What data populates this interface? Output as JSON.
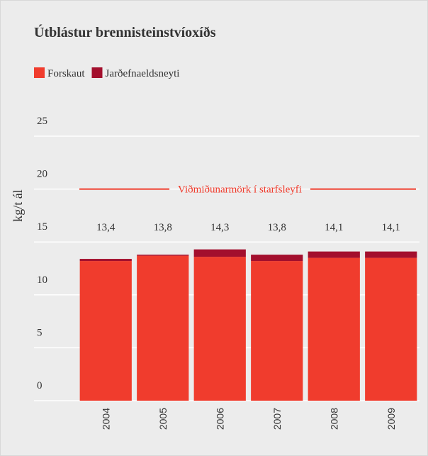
{
  "chart_data": {
    "type": "stacked_bar",
    "title": "Útblástur brennisteinstvíoxíðs",
    "ylabel": "kg/t ál",
    "categories": [
      "2004",
      "2005",
      "2006",
      "2007",
      "2008",
      "2009"
    ],
    "series": [
      {
        "name": "Forskaut",
        "color": "#f03c2d",
        "values": [
          13.2,
          13.7,
          13.6,
          13.2,
          13.5,
          13.5
        ]
      },
      {
        "name": "Jarðefnaeldsneyti",
        "color": "#a30f2d",
        "values": [
          0.2,
          0.1,
          0.7,
          0.6,
          0.6,
          0.6
        ]
      }
    ],
    "totals": [
      13.4,
      13.8,
      14.3,
      13.8,
      14.1,
      14.1
    ],
    "total_labels": [
      "13,4",
      "13,8",
      "14,3",
      "13,8",
      "14,1",
      "14,1"
    ],
    "reference_line": {
      "value": 20,
      "label": "Viðmiðunarmörk í starfsleyfi",
      "color": "#f03c2d"
    },
    "ylim": [
      0,
      25
    ],
    "yticks": [
      0,
      5,
      10,
      15,
      20,
      25
    ],
    "grid": true
  }
}
